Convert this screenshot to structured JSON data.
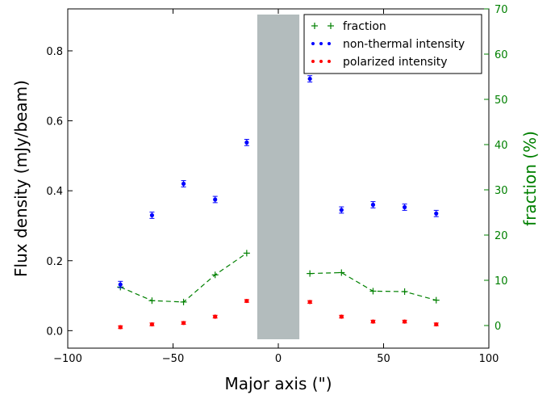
{
  "chart_data": {
    "type": "scatter",
    "xlabel": "Major axis (\")",
    "ylabel": "Flux density (mJy/beam)",
    "ylabel_right": "fraction (%)",
    "xlim": [
      -100,
      100
    ],
    "ylim": [
      -0.05,
      0.92
    ],
    "ylim_right": [
      -5,
      70
    ],
    "xticks": [
      -100,
      -50,
      0,
      50,
      100
    ],
    "xtick_labels": [
      "−100",
      "−50",
      "0",
      "50",
      "100"
    ],
    "yticks": [
      0.0,
      0.2,
      0.4,
      0.6,
      0.8
    ],
    "ytick_labels": [
      "0.0",
      "0.2",
      "0.4",
      "0.6",
      "0.8"
    ],
    "yticks_right": [
      0,
      10,
      20,
      30,
      40,
      50,
      60,
      70
    ],
    "ytick_labels_right": [
      "0",
      "10",
      "20",
      "30",
      "40",
      "50",
      "60",
      "70"
    ],
    "masked_region": {
      "x": [
        -10,
        10
      ],
      "color": "#b3bcbd"
    },
    "legend_position": "top-right",
    "series": [
      {
        "name": "fraction",
        "axis": "right",
        "marker": "+",
        "line": "dashed",
        "color": "#008000",
        "segments": [
          {
            "x": [
              -75,
              -60,
              -45,
              -30,
              -15
            ],
            "y": [
              8.5,
              5.5,
              5.2,
              11.2,
              16.0
            ]
          },
          {
            "x": [
              15,
              30,
              45,
              60,
              75
            ],
            "y": [
              11.5,
              11.7,
              7.6,
              7.5,
              5.6
            ]
          }
        ]
      },
      {
        "name": "non-thermal intensity",
        "axis": "left",
        "marker": "o",
        "color": "#0000ff",
        "x": [
          -75,
          -60,
          -45,
          -30,
          -15,
          15,
          30,
          45,
          60,
          75
        ],
        "y": [
          0.132,
          0.33,
          0.42,
          0.375,
          0.538,
          0.72,
          0.345,
          0.36,
          0.353,
          0.335
        ],
        "yerr": [
          0.009,
          0.009,
          0.009,
          0.009,
          0.009,
          0.009,
          0.009,
          0.009,
          0.009,
          0.009
        ]
      },
      {
        "name": "polarized intensity",
        "axis": "left",
        "marker": "o",
        "color": "#ff0000",
        "x": [
          -75,
          -60,
          -45,
          -30,
          -15,
          15,
          30,
          45,
          60,
          75
        ],
        "y": [
          0.01,
          0.018,
          0.022,
          0.04,
          0.085,
          0.082,
          0.04,
          0.026,
          0.026,
          0.018
        ],
        "yerr": [
          0.004,
          0.004,
          0.004,
          0.004,
          0.004,
          0.004,
          0.004,
          0.004,
          0.004,
          0.004
        ]
      }
    ]
  }
}
